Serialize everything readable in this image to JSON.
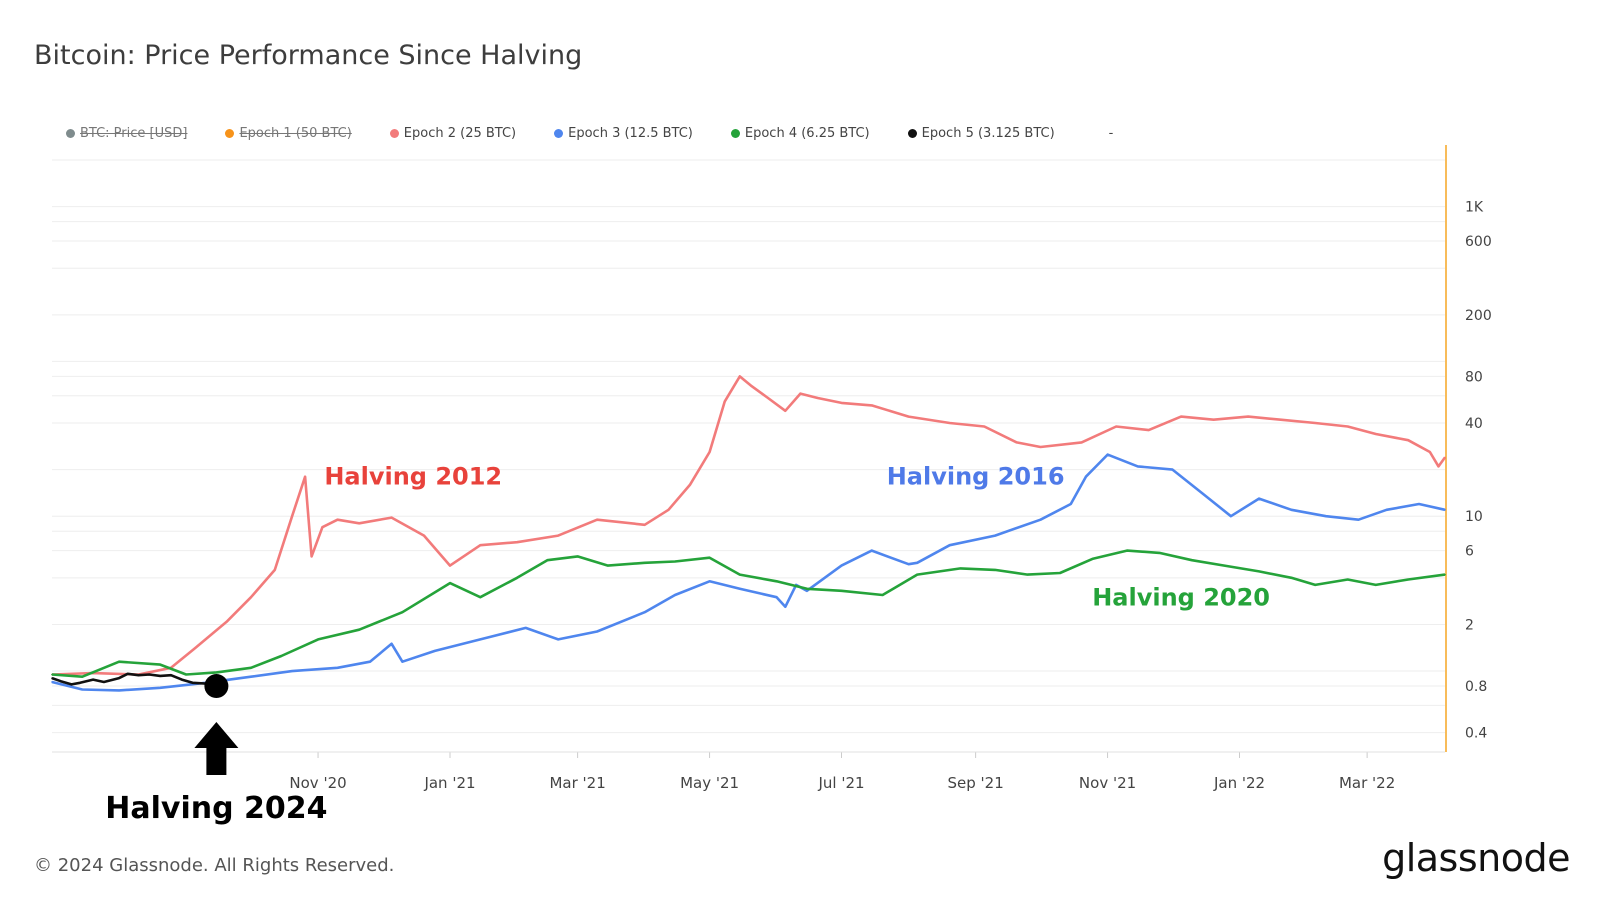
{
  "title": "Bitcoin: Price Performance Since Halving",
  "legend": [
    {
      "label": "BTC: Price [USD]",
      "color": "#7f8c8d",
      "disabled": true
    },
    {
      "label": "Epoch 1 (50 BTC)",
      "color": "#f7931a",
      "disabled": true
    },
    {
      "label": "Epoch 2 (25 BTC)",
      "color": "#f27b7b",
      "disabled": false
    },
    {
      "label": "Epoch 3 (12.5 BTC)",
      "color": "#4f86ee",
      "disabled": false
    },
    {
      "label": "Epoch 4 (6.25 BTC)",
      "color": "#25a33a",
      "disabled": false
    },
    {
      "label": "Epoch 5 (3.125 BTC)",
      "color": "#111111",
      "disabled": false
    }
  ],
  "legend_extra": "-",
  "footer": "© 2024 Glassnode. All Rights Reserved.",
  "brand": "glassnode",
  "chart_data": {
    "type": "line",
    "y_scale": "log",
    "ylim": [
      0.3,
      2500
    ],
    "y_ticks": [
      "0.4",
      "0.8",
      "2",
      "6",
      "10",
      "40",
      "80",
      "200",
      "600",
      "1K"
    ],
    "y_tick_values": [
      0.4,
      0.8,
      2,
      6,
      10,
      40,
      80,
      200,
      600,
      1000
    ],
    "x_ticks": [
      "Nov '20",
      "Jan '21",
      "Mar '21",
      "May '21",
      "Jul '21",
      "Sep '21",
      "Nov '21",
      "Jan '22",
      "Mar '22"
    ],
    "x_tick_dates": [
      "2020-11-01",
      "2021-01-01",
      "2021-03-01",
      "2021-05-01",
      "2021-07-01",
      "2021-09-01",
      "2021-11-01",
      "2022-01-01",
      "2022-03-01"
    ],
    "xlim": [
      "2020-07-01",
      "2022-04-06"
    ],
    "grid": true,
    "series": [
      {
        "name": "Epoch 2 (25 BTC)",
        "color": "#f27b7b",
        "x": [
          "2020-07-01",
          "2020-07-20",
          "2020-08-10",
          "2020-08-25",
          "2020-09-05",
          "2020-09-20",
          "2020-10-01",
          "2020-10-12",
          "2020-10-20",
          "2020-10-26",
          "2020-10-29",
          "2020-11-03",
          "2020-11-10",
          "2020-11-20",
          "2020-12-05",
          "2020-12-20",
          "2021-01-01",
          "2021-01-15",
          "2021-02-01",
          "2021-02-20",
          "2021-03-10",
          "2021-04-01",
          "2021-04-12",
          "2021-04-22",
          "2021-05-01",
          "2021-05-08",
          "2021-05-15",
          "2021-05-20",
          "2021-05-28",
          "2021-06-05",
          "2021-06-12",
          "2021-06-20",
          "2021-07-01",
          "2021-07-15",
          "2021-08-01",
          "2021-08-20",
          "2021-09-05",
          "2021-09-20",
          "2021-10-01",
          "2021-10-20",
          "2021-11-05",
          "2021-11-20",
          "2021-12-05",
          "2021-12-20",
          "2022-01-05",
          "2022-01-20",
          "2022-02-05",
          "2022-02-20",
          "2022-03-05",
          "2022-03-20",
          "2022-03-30",
          "2022-04-03",
          "2022-04-06"
        ],
        "values": [
          0.95,
          0.97,
          0.95,
          1.05,
          1.4,
          2.1,
          3.0,
          4.5,
          10,
          18,
          5.5,
          8.5,
          9.5,
          9.0,
          9.8,
          7.5,
          4.8,
          6.5,
          6.8,
          7.5,
          9.5,
          8.8,
          11,
          16,
          26,
          55,
          80,
          70,
          58,
          48,
          62,
          58,
          54,
          52,
          44,
          40,
          38,
          30,
          28,
          30,
          38,
          36,
          44,
          42,
          44,
          42,
          40,
          38,
          34,
          31,
          26,
          21,
          24
        ]
      },
      {
        "name": "Epoch 3 (12.5 BTC)",
        "color": "#4f86ee",
        "x": [
          "2020-07-01",
          "2020-07-15",
          "2020-08-01",
          "2020-08-20",
          "2020-09-10",
          "2020-10-01",
          "2020-10-20",
          "2020-11-10",
          "2020-11-25",
          "2020-12-05",
          "2020-12-10",
          "2020-12-25",
          "2021-01-15",
          "2021-02-05",
          "2021-02-20",
          "2021-03-10",
          "2021-04-01",
          "2021-04-15",
          "2021-05-01",
          "2021-05-15",
          "2021-06-01",
          "2021-06-05",
          "2021-06-10",
          "2021-06-15",
          "2021-07-01",
          "2021-07-15",
          "2021-08-01",
          "2021-08-05",
          "2021-08-20",
          "2021-09-10",
          "2021-10-01",
          "2021-10-15",
          "2021-10-22",
          "2021-11-01",
          "2021-11-15",
          "2021-12-01",
          "2021-12-15",
          "2021-12-28",
          "2022-01-10",
          "2022-01-25",
          "2022-02-10",
          "2022-02-25",
          "2022-03-10",
          "2022-03-25",
          "2022-04-06"
        ],
        "values": [
          0.85,
          0.76,
          0.75,
          0.78,
          0.84,
          0.92,
          1.0,
          1.05,
          1.15,
          1.5,
          1.15,
          1.35,
          1.6,
          1.9,
          1.6,
          1.8,
          2.4,
          3.1,
          3.8,
          3.4,
          3.0,
          2.6,
          3.6,
          3.3,
          4.8,
          6.0,
          4.9,
          5.0,
          6.5,
          7.5,
          9.5,
          12,
          18,
          25,
          21,
          20,
          14,
          10,
          13,
          11,
          10,
          9.5,
          11,
          12,
          11
        ]
      },
      {
        "name": "Epoch 4 (6.25 BTC)",
        "color": "#25a33a",
        "x": [
          "2020-07-01",
          "2020-07-15",
          "2020-08-01",
          "2020-08-20",
          "2020-09-01",
          "2020-09-15",
          "2020-10-01",
          "2020-10-15",
          "2020-11-01",
          "2020-11-20",
          "2020-12-10",
          "2021-01-01",
          "2021-01-15",
          "2021-02-01",
          "2021-02-15",
          "2021-03-01",
          "2021-03-15",
          "2021-04-01",
          "2021-04-15",
          "2021-05-01",
          "2021-05-15",
          "2021-06-01",
          "2021-06-15",
          "2021-07-01",
          "2021-07-20",
          "2021-08-05",
          "2021-08-25",
          "2021-09-10",
          "2021-09-25",
          "2021-10-10",
          "2021-10-25",
          "2021-11-10",
          "2021-11-25",
          "2021-12-10",
          "2021-12-25",
          "2022-01-10",
          "2022-01-25",
          "2022-02-05",
          "2022-02-20",
          "2022-03-05",
          "2022-03-20",
          "2022-04-06"
        ],
        "values": [
          0.95,
          0.92,
          1.15,
          1.1,
          0.95,
          0.98,
          1.05,
          1.25,
          1.6,
          1.85,
          2.4,
          3.7,
          3.0,
          4.0,
          5.2,
          5.5,
          4.8,
          5.0,
          5.1,
          5.4,
          4.2,
          3.8,
          3.4,
          3.3,
          3.1,
          4.2,
          4.6,
          4.5,
          4.2,
          4.3,
          5.3,
          6.0,
          5.8,
          5.2,
          4.8,
          4.4,
          4.0,
          3.6,
          3.9,
          3.6,
          3.9,
          4.2
        ]
      },
      {
        "name": "Epoch 5 (3.125 BTC)",
        "color": "#111111",
        "x": [
          "2020-07-01",
          "2020-07-05",
          "2020-07-10",
          "2020-07-14",
          "2020-07-20",
          "2020-07-25",
          "2020-08-01",
          "2020-08-05",
          "2020-08-10",
          "2020-08-15",
          "2020-08-20",
          "2020-08-25",
          "2020-08-30",
          "2020-09-04",
          "2020-09-10",
          "2020-09-14"
        ],
        "values": [
          0.9,
          0.86,
          0.82,
          0.84,
          0.88,
          0.85,
          0.9,
          0.96,
          0.94,
          0.95,
          0.93,
          0.94,
          0.88,
          0.84,
          0.83,
          0.8
        ]
      }
    ],
    "annotations": [
      {
        "text": "Halving 2012",
        "color": "#e8423b",
        "date": "2020-12-15",
        "value": 16
      },
      {
        "text": "Halving 2016",
        "color": "#4f7ae8",
        "date": "2021-09-01",
        "value": 16
      },
      {
        "text": "Halving 2020",
        "color": "#25a33a",
        "date": "2021-12-05",
        "value": 2.65
      },
      {
        "text": "Halving 2024",
        "color": "#111111"
      }
    ],
    "marker_point": {
      "date": "2020-09-15",
      "value": 0.8
    }
  }
}
